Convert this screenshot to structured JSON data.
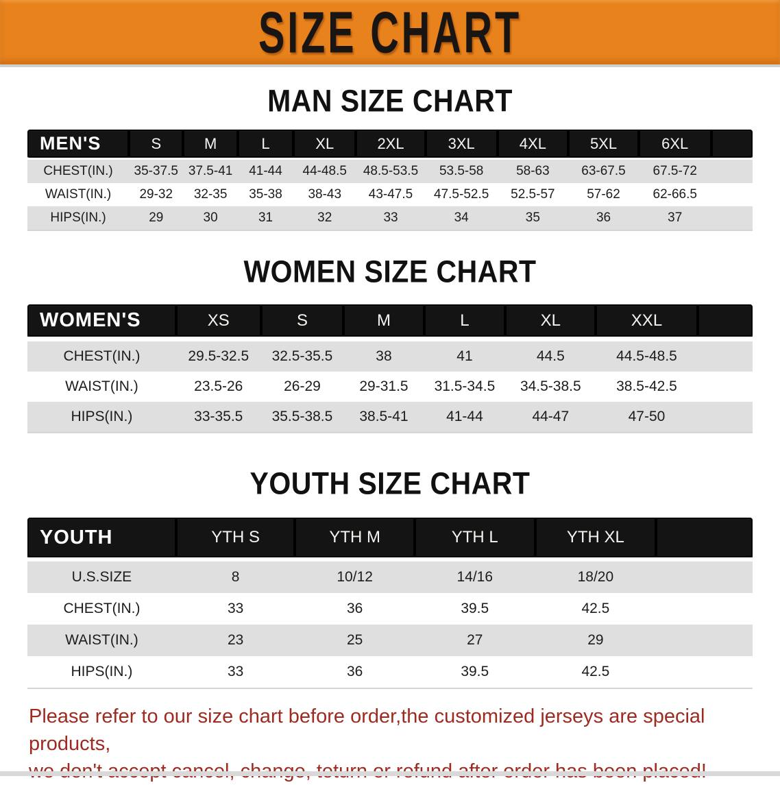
{
  "banner": {
    "title": "SIZE CHART"
  },
  "colors": {
    "banner_bg": "#E8821C",
    "header_bar_bg": "#141414",
    "shaded_row_bg": "#DFDFDF",
    "note_text": "#9E2A20"
  },
  "sections": [
    {
      "heading": "MAN SIZE CHART",
      "group_label": "MEN'S",
      "columns": [
        "S",
        "M",
        "L",
        "XL",
        "2XL",
        "3XL",
        "4XL",
        "5XL",
        "6XL"
      ],
      "rows": [
        {
          "label": "CHEST(IN.)",
          "values": [
            "35-37.5",
            "37.5-41",
            "41-44",
            "44-48.5",
            "48.5-53.5",
            "53.5-58",
            "58-63",
            "63-67.5",
            "67.5-72"
          ]
        },
        {
          "label": "WAIST(IN.)",
          "values": [
            "29-32",
            "32-35",
            "35-38",
            "38-43",
            "43-47.5",
            "47.5-52.5",
            "52.5-57",
            "57-62",
            "62-66.5"
          ]
        },
        {
          "label": "HIPS(IN.)",
          "values": [
            "29",
            "30",
            "31",
            "32",
            "33",
            "34",
            "35",
            "36",
            "37"
          ]
        }
      ]
    },
    {
      "heading": "WOMEN SIZE CHART",
      "group_label": "WOMEN'S",
      "columns": [
        "XS",
        "S",
        "M",
        "L",
        "XL",
        "XXL"
      ],
      "rows": [
        {
          "label": "CHEST(IN.)",
          "values": [
            "29.5-32.5",
            "32.5-35.5",
            "38",
            "41",
            "44.5",
            "44.5-48.5"
          ]
        },
        {
          "label": "WAIST(IN.)",
          "values": [
            "23.5-26",
            "26-29",
            "29-31.5",
            "31.5-34.5",
            "34.5-38.5",
            "38.5-42.5"
          ]
        },
        {
          "label": "HIPS(IN.)",
          "values": [
            "33-35.5",
            "35.5-38.5",
            "38.5-41",
            "41-44",
            "44-47",
            "47-50"
          ]
        }
      ]
    },
    {
      "heading": "YOUTH SIZE CHART",
      "group_label": "YOUTH",
      "columns": [
        "YTH S",
        "YTH M",
        "YTH L",
        "YTH XL"
      ],
      "rows": [
        {
          "label": "U.S.SIZE",
          "values": [
            "8",
            "10/12",
            "14/16",
            "18/20"
          ]
        },
        {
          "label": "CHEST(IN.)",
          "values": [
            "33",
            "36",
            "39.5",
            "42.5"
          ]
        },
        {
          "label": "WAIST(IN.)",
          "values": [
            "23",
            "25",
            "27",
            "29"
          ]
        },
        {
          "label": "HIPS(IN.)",
          "values": [
            "33",
            "36",
            "39.5",
            "42.5"
          ]
        }
      ]
    }
  ],
  "footer": {
    "line1": "Please refer to our size chart before order,the customized jerseys are special products,",
    "line2": "we don't accept cancel, change, teturn or refund after order has been placed!"
  }
}
